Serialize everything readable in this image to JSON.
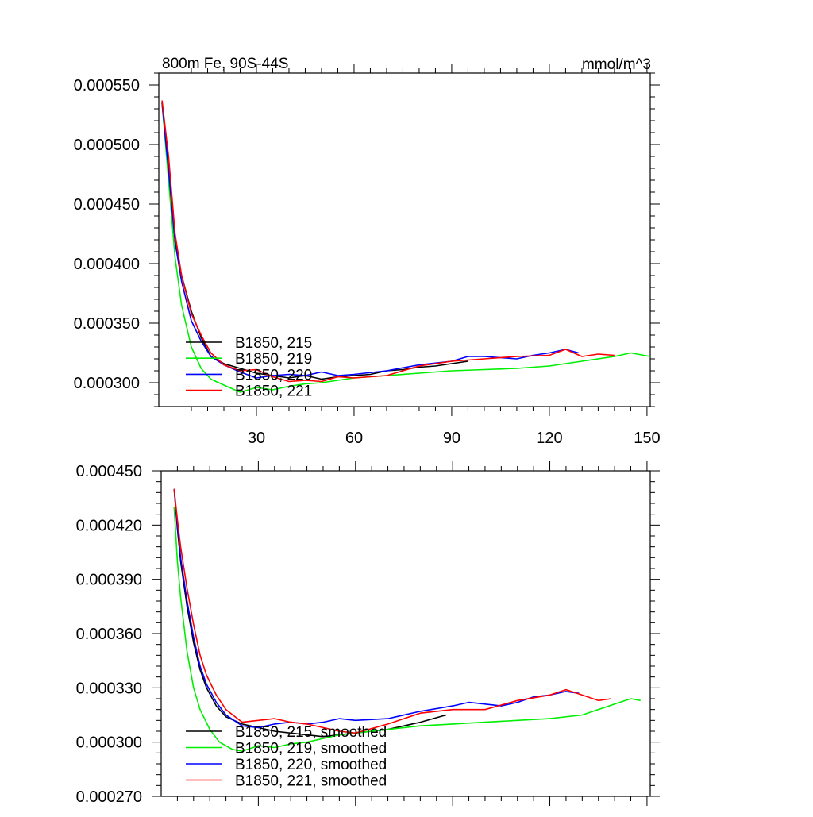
{
  "chart_data": [
    {
      "type": "line",
      "title": "800m Fe, 90S-44S",
      "units": "mmol/m^3",
      "xlim": [
        0,
        151
      ],
      "ylim": [
        0.00028,
        0.00056
      ],
      "xticks": [
        30,
        60,
        90,
        120,
        150
      ],
      "xtick_labels": [
        "30",
        "60",
        "90",
        "120",
        "150"
      ],
      "yticks": [
        0.0003,
        0.00035,
        0.0004,
        0.00045,
        0.0005,
        0.00055
      ],
      "ytick_labels": [
        "0.000300",
        "0.000350",
        "0.000400",
        "0.000450",
        "0.000500",
        "0.000550"
      ],
      "legend_position": "bottom-left",
      "series": [
        {
          "name": "B1850, 215",
          "color": "#000000",
          "x": [
            1,
            3,
            5,
            7,
            10,
            13,
            16,
            20,
            25,
            30,
            35,
            40,
            45,
            50,
            55,
            60,
            65,
            70,
            75,
            80,
            85,
            90,
            95
          ],
          "y": [
            0.000535,
            0.00048,
            0.00042,
            0.00039,
            0.00036,
            0.000338,
            0.000322,
            0.000316,
            0.000312,
            0.000308,
            0.000306,
            0.000304,
            0.000306,
            0.000303,
            0.000305,
            0.000306,
            0.000307,
            0.00031,
            0.000311,
            0.000313,
            0.000314,
            0.000316,
            0.000318
          ]
        },
        {
          "name": "B1850, 219",
          "color": "#00ee00",
          "x": [
            1,
            3,
            5,
            7,
            10,
            13,
            16,
            20,
            25,
            30,
            35,
            40,
            45,
            50,
            55,
            60,
            70,
            80,
            90,
            100,
            110,
            120,
            130,
            140,
            145,
            151
          ],
          "y": [
            0.000535,
            0.00047,
            0.000405,
            0.000365,
            0.00033,
            0.000312,
            0.000303,
            0.000298,
            0.000292,
            0.000296,
            0.000294,
            0.000297,
            0.000299,
            0.0003,
            0.000302,
            0.000304,
            0.000306,
            0.000308,
            0.00031,
            0.000311,
            0.000312,
            0.000314,
            0.000318,
            0.000322,
            0.000325,
            0.000322
          ]
        },
        {
          "name": "B1850, 220",
          "color": "#0000ff",
          "x": [
            1,
            3,
            5,
            7,
            10,
            13,
            16,
            20,
            25,
            30,
            35,
            40,
            45,
            50,
            55,
            60,
            70,
            80,
            90,
            95,
            100,
            105,
            110,
            115,
            120,
            125,
            129
          ],
          "y": [
            0.000535,
            0.000478,
            0.000418,
            0.000385,
            0.000352,
            0.000335,
            0.000322,
            0.000315,
            0.000309,
            0.000304,
            0.000306,
            0.000307,
            0.000306,
            0.000309,
            0.000306,
            0.000307,
            0.00031,
            0.000315,
            0.000318,
            0.000322,
            0.000322,
            0.000321,
            0.00032,
            0.000323,
            0.000325,
            0.000328,
            0.000325
          ]
        },
        {
          "name": "B1850, 221",
          "color": "#ff0000",
          "x": [
            1,
            3,
            5,
            7,
            10,
            13,
            16,
            20,
            25,
            30,
            35,
            40,
            45,
            50,
            55,
            60,
            70,
            80,
            90,
            100,
            110,
            120,
            125,
            130,
            135,
            140
          ],
          "y": [
            0.000537,
            0.00049,
            0.000425,
            0.00039,
            0.000358,
            0.00034,
            0.000325,
            0.000315,
            0.00031,
            0.000311,
            0.000305,
            0.000301,
            0.000302,
            0.000301,
            0.000305,
            0.000304,
            0.000306,
            0.000314,
            0.000318,
            0.00032,
            0.000322,
            0.000323,
            0.000328,
            0.000322,
            0.000324,
            0.000323
          ]
        }
      ]
    },
    {
      "type": "line",
      "xlim": [
        0,
        151
      ],
      "ylim": [
        0.00027,
        0.00045
      ],
      "xticks": [
        30,
        60,
        90,
        120,
        150
      ],
      "yticks": [
        0.00027,
        0.0003,
        0.00033,
        0.00036,
        0.00039,
        0.00042,
        0.00045
      ],
      "ytick_labels": [
        "0.000270",
        "0.000300",
        "0.000330",
        "0.000360",
        "0.000390",
        "0.000420",
        "0.000450"
      ],
      "legend_position": "bottom-left",
      "series": [
        {
          "name": "B1850, 215, smoothed",
          "color": "#000000",
          "x": [
            4,
            5,
            6,
            8,
            10,
            12,
            14,
            17,
            20,
            25,
            30,
            35,
            40,
            45,
            50,
            55,
            60,
            70,
            80,
            88
          ],
          "y": [
            0.00044,
            0.000418,
            0.0004,
            0.000375,
            0.000355,
            0.00034,
            0.00033,
            0.00032,
            0.000314,
            0.00031,
            0.000308,
            0.000306,
            0.000305,
            0.000304,
            0.000303,
            0.000304,
            0.000305,
            0.000307,
            0.000311,
            0.000315
          ]
        },
        {
          "name": "B1850, 219, smoothed",
          "color": "#00ee00",
          "x": [
            4,
            5,
            6,
            8,
            10,
            12,
            15,
            18,
            22,
            25,
            30,
            35,
            40,
            45,
            50,
            55,
            60,
            70,
            80,
            90,
            100,
            110,
            120,
            130,
            140,
            145,
            148
          ],
          "y": [
            0.00043,
            0.0004,
            0.00038,
            0.00035,
            0.00033,
            0.000318,
            0.000307,
            0.0003,
            0.000296,
            0.000295,
            0.000298,
            0.000297,
            0.000299,
            0.0003,
            0.000302,
            0.000304,
            0.000305,
            0.000307,
            0.000309,
            0.00031,
            0.000311,
            0.000312,
            0.000313,
            0.000315,
            0.000321,
            0.000324,
            0.000323
          ]
        },
        {
          "name": "B1850, 220, smoothed",
          "color": "#0000ff",
          "x": [
            4,
            5,
            6,
            8,
            10,
            12,
            14,
            17,
            20,
            25,
            30,
            35,
            40,
            45,
            50,
            55,
            60,
            70,
            80,
            90,
            95,
            100,
            105,
            110,
            115,
            120,
            125,
            129
          ],
          "y": [
            0.00044,
            0.00042,
            0.000402,
            0.000378,
            0.000358,
            0.000342,
            0.000332,
            0.000322,
            0.000315,
            0.000309,
            0.000308,
            0.00031,
            0.000311,
            0.00031,
            0.000311,
            0.000313,
            0.000312,
            0.000313,
            0.000317,
            0.00032,
            0.000322,
            0.000321,
            0.00032,
            0.000322,
            0.000325,
            0.000326,
            0.000328,
            0.000327
          ]
        },
        {
          "name": "B1850, 221, smoothed",
          "color": "#ff0000",
          "x": [
            4,
            5,
            6,
            8,
            10,
            12,
            14,
            17,
            20,
            25,
            30,
            35,
            40,
            45,
            50,
            55,
            60,
            70,
            80,
            90,
            100,
            110,
            120,
            125,
            130,
            135,
            139
          ],
          "y": [
            0.00044,
            0.000423,
            0.000408,
            0.000385,
            0.000365,
            0.000348,
            0.000337,
            0.000326,
            0.000318,
            0.000311,
            0.000312,
            0.000313,
            0.000311,
            0.00031,
            0.000308,
            0.000306,
            0.000305,
            0.00031,
            0.000316,
            0.000318,
            0.000318,
            0.000323,
            0.000326,
            0.000329,
            0.000326,
            0.000323,
            0.000324
          ]
        }
      ]
    }
  ]
}
